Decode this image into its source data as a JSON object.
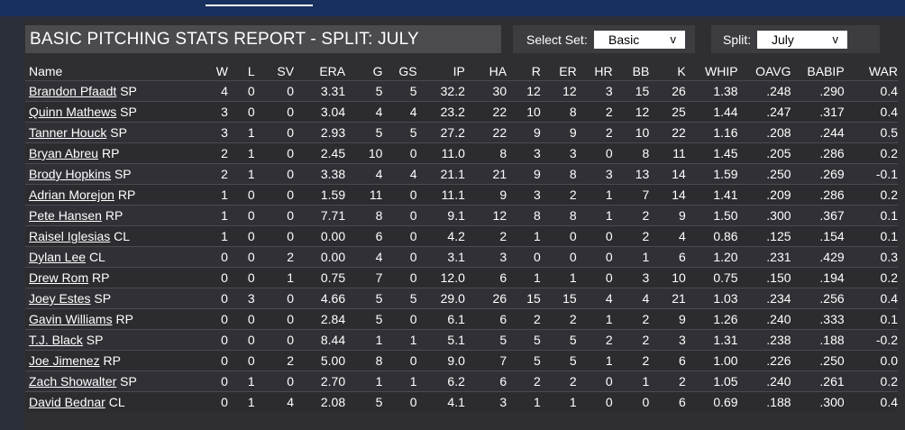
{
  "report": {
    "title": "BASIC PITCHING STATS REPORT - SPLIT: JULY",
    "select_set_label": "Select Set:",
    "select_set_value": "Basic",
    "split_label": "Split:",
    "split_value": "July"
  },
  "columns": [
    "Name",
    "W",
    "L",
    "SV",
    "ERA",
    "G",
    "GS",
    "IP",
    "HA",
    "R",
    "ER",
    "HR",
    "BB",
    "K",
    "WHIP",
    "OAVG",
    "BABIP",
    "WAR"
  ],
  "rows": [
    {
      "name": "Brandon Pfaadt",
      "pos": "SP",
      "stats": [
        "4",
        "0",
        "0",
        "3.31",
        "5",
        "5",
        "32.2",
        "30",
        "12",
        "12",
        "3",
        "15",
        "26",
        "1.38",
        ".248",
        ".290",
        "0.4"
      ]
    },
    {
      "name": "Quinn Mathews",
      "pos": "SP",
      "stats": [
        "3",
        "0",
        "0",
        "3.04",
        "4",
        "4",
        "23.2",
        "22",
        "10",
        "8",
        "2",
        "12",
        "25",
        "1.44",
        ".247",
        ".317",
        "0.4"
      ]
    },
    {
      "name": "Tanner Houck",
      "pos": "SP",
      "stats": [
        "3",
        "1",
        "0",
        "2.93",
        "5",
        "5",
        "27.2",
        "22",
        "9",
        "9",
        "2",
        "10",
        "22",
        "1.16",
        ".208",
        ".244",
        "0.5"
      ]
    },
    {
      "name": "Bryan Abreu",
      "pos": "RP",
      "stats": [
        "2",
        "1",
        "0",
        "2.45",
        "10",
        "0",
        "11.0",
        "8",
        "3",
        "3",
        "0",
        "8",
        "11",
        "1.45",
        ".205",
        ".286",
        "0.2"
      ]
    },
    {
      "name": "Brody Hopkins",
      "pos": "SP",
      "stats": [
        "2",
        "1",
        "0",
        "3.38",
        "4",
        "4",
        "21.1",
        "21",
        "9",
        "8",
        "3",
        "13",
        "14",
        "1.59",
        ".250",
        ".269",
        "-0.1"
      ]
    },
    {
      "name": "Adrian Morejon",
      "pos": "RP",
      "stats": [
        "1",
        "0",
        "0",
        "1.59",
        "11",
        "0",
        "11.1",
        "9",
        "3",
        "2",
        "1",
        "7",
        "14",
        "1.41",
        ".209",
        ".286",
        "0.2"
      ]
    },
    {
      "name": "Pete Hansen",
      "pos": "RP",
      "stats": [
        "1",
        "0",
        "0",
        "7.71",
        "8",
        "0",
        "9.1",
        "12",
        "8",
        "8",
        "1",
        "2",
        "9",
        "1.50",
        ".300",
        ".367",
        "0.1"
      ]
    },
    {
      "name": "Raisel Iglesias",
      "pos": "CL",
      "stats": [
        "1",
        "0",
        "0",
        "0.00",
        "6",
        "0",
        "4.2",
        "2",
        "1",
        "0",
        "0",
        "2",
        "4",
        "0.86",
        ".125",
        ".154",
        "0.1"
      ]
    },
    {
      "name": "Dylan Lee",
      "pos": "CL",
      "stats": [
        "0",
        "0",
        "2",
        "0.00",
        "4",
        "0",
        "3.1",
        "3",
        "0",
        "0",
        "0",
        "1",
        "6",
        "1.20",
        ".231",
        ".429",
        "0.3"
      ]
    },
    {
      "name": "Drew Rom",
      "pos": "RP",
      "stats": [
        "0",
        "0",
        "1",
        "0.75",
        "7",
        "0",
        "12.0",
        "6",
        "1",
        "1",
        "0",
        "3",
        "10",
        "0.75",
        ".150",
        ".194",
        "0.2"
      ]
    },
    {
      "name": "Joey Estes",
      "pos": "SP",
      "stats": [
        "0",
        "3",
        "0",
        "4.66",
        "5",
        "5",
        "29.0",
        "26",
        "15",
        "15",
        "4",
        "4",
        "21",
        "1.03",
        ".234",
        ".256",
        "0.4"
      ]
    },
    {
      "name": "Gavin Williams",
      "pos": "RP",
      "stats": [
        "0",
        "0",
        "0",
        "2.84",
        "5",
        "0",
        "6.1",
        "6",
        "2",
        "2",
        "1",
        "2",
        "9",
        "1.26",
        ".240",
        ".333",
        "0.1"
      ]
    },
    {
      "name": "T.J. Black",
      "pos": "SP",
      "stats": [
        "0",
        "0",
        "0",
        "8.44",
        "1",
        "1",
        "5.1",
        "5",
        "5",
        "5",
        "2",
        "2",
        "3",
        "1.31",
        ".238",
        ".188",
        "-0.2"
      ]
    },
    {
      "name": "Joe Jimenez",
      "pos": "RP",
      "stats": [
        "0",
        "0",
        "2",
        "5.00",
        "8",
        "0",
        "9.0",
        "7",
        "5",
        "5",
        "1",
        "2",
        "6",
        "1.00",
        ".226",
        ".250",
        "0.0"
      ]
    },
    {
      "name": "Zach Showalter",
      "pos": "SP",
      "stats": [
        "0",
        "1",
        "0",
        "2.70",
        "1",
        "1",
        "6.2",
        "6",
        "2",
        "2",
        "0",
        "1",
        "2",
        "1.05",
        ".240",
        ".261",
        "0.2"
      ]
    },
    {
      "name": "David Bednar",
      "pos": "CL",
      "stats": [
        "0",
        "1",
        "4",
        "2.08",
        "5",
        "0",
        "4.1",
        "3",
        "1",
        "1",
        "0",
        "0",
        "6",
        "0.69",
        ".188",
        ".300",
        "0.4"
      ]
    }
  ]
}
